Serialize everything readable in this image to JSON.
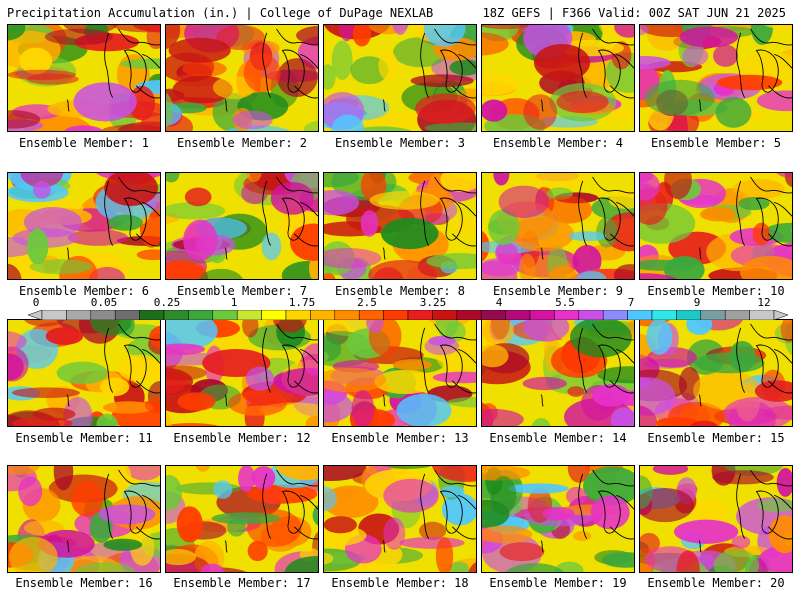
{
  "header": {
    "left": "Precipitation Accumulation (in.) | College of DuPage NEXLAB",
    "right": "18Z GEFS | F366 Valid: 00Z SAT JUN 21 2025"
  },
  "colorbar": {
    "tick_labels": [
      "0",
      "0.05",
      "0.25",
      "1",
      "1.75",
      "2.5",
      "3.25",
      "4",
      "5.5",
      "7",
      "9",
      "12"
    ],
    "colors": [
      "#c8c8c8",
      "#aaaaaa",
      "#8c8c8c",
      "#6e6e6e",
      "#1e6e1e",
      "#2e8b2e",
      "#3ca83c",
      "#6cc83c",
      "#c8e632",
      "#ffff00",
      "#ffd700",
      "#ffb400",
      "#ff8c00",
      "#ff6400",
      "#ff3c00",
      "#e61e1e",
      "#c81414",
      "#aa0a28",
      "#960a50",
      "#b40a78",
      "#d214a0",
      "#e632c8",
      "#c850e6",
      "#8c8cff",
      "#50c8ff",
      "#32e6e6",
      "#1ec8c8",
      "#78a0a0",
      "#a0a0a0",
      "#c8c8c8"
    ]
  },
  "members": [
    {
      "label": "Ensemble Member: 1"
    },
    {
      "label": "Ensemble Member: 2"
    },
    {
      "label": "Ensemble Member: 3"
    },
    {
      "label": "Ensemble Member: 4"
    },
    {
      "label": "Ensemble Member: 5"
    },
    {
      "label": "Ensemble Member: 6"
    },
    {
      "label": "Ensemble Member: 7"
    },
    {
      "label": "Ensemble Member: 8"
    },
    {
      "label": "Ensemble Member: 9"
    },
    {
      "label": "Ensemble Member: 10"
    },
    {
      "label": "Ensemble Member: 11"
    },
    {
      "label": "Ensemble Member: 12"
    },
    {
      "label": "Ensemble Member: 13"
    },
    {
      "label": "Ensemble Member: 14"
    },
    {
      "label": "Ensemble Member: 15"
    },
    {
      "label": "Ensemble Member: 16"
    },
    {
      "label": "Ensemble Member: 17"
    },
    {
      "label": "Ensemble Member: 18"
    },
    {
      "label": "Ensemble Member: 19"
    },
    {
      "label": "Ensemble Member: 20"
    }
  ]
}
